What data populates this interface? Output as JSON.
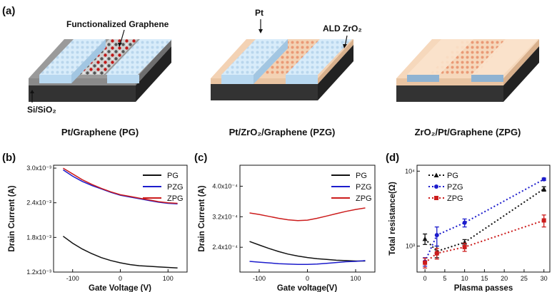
{
  "figure": {
    "panels": {
      "a": "(a)",
      "b": "(b)",
      "c": "(c)",
      "d": "(d)"
    },
    "device_labels": {
      "functionalized_graphene": "Functionalized Graphene",
      "pt": "Pt",
      "ald_zro2": "ALD ZrO₂",
      "substrate": "Si/SiO₂"
    },
    "captions": [
      "Pt/Graphene (PG)",
      "Pt/ZrO₂/Graphene (PZG)",
      "ZrO₂/Pt/Graphene (ZPG)"
    ],
    "colors": {
      "PG": "#111111",
      "PZG": "#1c1ccc",
      "ZPG": "#cc1c1c",
      "pt": "#cfe5f6",
      "zro2": "#f8dcc0",
      "substrate": "#3a3a3a"
    }
  },
  "chart_data": [
    {
      "type": "line",
      "panel": "(b)",
      "xlabel": "Gate Voltage (V)",
      "ylabel": "Drain Current (A)",
      "xlim": [
        -140,
        140
      ],
      "ylim": [
        0.0012,
        0.00305
      ],
      "xticks": [
        {
          "v": -100,
          "label": "-100"
        },
        {
          "v": 0,
          "label": "0"
        },
        {
          "v": 100,
          "label": "100"
        }
      ],
      "yticks": [
        {
          "v": 0.0012,
          "label": "1.2x10⁻³"
        },
        {
          "v": 0.0018,
          "label": "1.8x10⁻³"
        },
        {
          "v": 0.0024,
          "label": "2.4x10⁻³"
        },
        {
          "v": 0.003,
          "label": "3.0x10⁻³"
        }
      ],
      "x": [
        -120,
        -100,
        -80,
        -60,
        -40,
        -20,
        0,
        20,
        40,
        60,
        80,
        100,
        120
      ],
      "series": [
        {
          "name": "PG",
          "values": [
            0.00182,
            0.0017,
            0.0016,
            0.00152,
            0.00145,
            0.0014,
            0.00136,
            0.00133,
            0.00131,
            0.0013,
            0.00129,
            0.00128,
            0.00127
          ]
        },
        {
          "name": "PZG",
          "values": [
            0.00297,
            0.00286,
            0.00277,
            0.0027,
            0.00264,
            0.00258,
            0.00253,
            0.0025,
            0.00247,
            0.00244,
            0.00241,
            0.00239,
            0.00238
          ]
        },
        {
          "name": "ZPG",
          "values": [
            0.003,
            0.0029,
            0.0028,
            0.00272,
            0.00265,
            0.00259,
            0.00254,
            0.00251,
            0.00248,
            0.00245,
            0.00242,
            0.0024,
            0.00239
          ]
        }
      ],
      "legend": "top-right"
    },
    {
      "type": "line",
      "panel": "(c)",
      "xlabel": "Gate voltage(V)",
      "ylabel": "Drain Current (A)",
      "xlim": [
        -140,
        140
      ],
      "ylim": [
        0.000175,
        0.000455
      ],
      "xticks": [
        {
          "v": -100,
          "label": "-100"
        },
        {
          "v": 0,
          "label": "0"
        },
        {
          "v": 100,
          "label": "100"
        }
      ],
      "yticks": [
        {
          "v": 0.00024,
          "label": "2.4x10⁻⁴"
        },
        {
          "v": 0.00032,
          "label": "3.2x10⁻⁴"
        },
        {
          "v": 0.0004,
          "label": "4.0x10⁻⁴"
        }
      ],
      "x": [
        -120,
        -100,
        -80,
        -60,
        -40,
        -20,
        0,
        20,
        40,
        60,
        80,
        100,
        120
      ],
      "series": [
        {
          "name": "PG",
          "values": [
            0.000255,
            0.000246,
            0.000237,
            0.000229,
            0.000222,
            0.000217,
            0.000213,
            0.00021,
            0.000208,
            0.000206,
            0.000205,
            0.000204,
            0.000204
          ]
        },
        {
          "name": "PZG",
          "values": [
            0.000203,
            0.000201,
            0.000199,
            0.000197,
            0.000196,
            0.000195,
            0.000195,
            0.000196,
            0.000198,
            0.0002,
            0.000202,
            0.000203,
            0.000205
          ]
        },
        {
          "name": "ZPG",
          "values": [
            0.00033,
            0.000326,
            0.000321,
            0.000316,
            0.000312,
            0.00031,
            0.000311,
            0.000316,
            0.000322,
            0.000328,
            0.000334,
            0.000339,
            0.000343
          ]
        }
      ],
      "legend": "top-right"
    },
    {
      "type": "scatter",
      "panel": "(d)",
      "xlabel": "Plasma passes",
      "ylabel": "Total resistance(Ω)",
      "yscale": "log",
      "xlim": [
        -2,
        31.5
      ],
      "ylim": [
        450,
        12000
      ],
      "xticks": [
        {
          "v": 0,
          "label": "0"
        },
        {
          "v": 5,
          "label": "5"
        },
        {
          "v": 10,
          "label": "10"
        },
        {
          "v": 15,
          "label": "15"
        },
        {
          "v": 20,
          "label": "20"
        },
        {
          "v": 25,
          "label": "25"
        },
        {
          "v": 30,
          "label": "30"
        }
      ],
      "yticks": [
        {
          "v": 1000,
          "label": "10³"
        },
        {
          "v": 10000,
          "label": "10⁴"
        }
      ],
      "x": [
        0,
        3,
        10,
        30
      ],
      "series": [
        {
          "name": "PG",
          "marker": "triangle",
          "values": [
            1250,
            850,
            1120,
            5800
          ],
          "errors": [
            200,
            150,
            100,
            400
          ]
        },
        {
          "name": "PZG",
          "marker": "circle",
          "values": [
            620,
            1400,
            2050,
            7800
          ],
          "errors": [
            80,
            400,
            250,
            300
          ]
        },
        {
          "name": "ZPG",
          "marker": "square",
          "values": [
            600,
            800,
            970,
            2200
          ],
          "errors": [
            90,
            130,
            120,
            400
          ]
        }
      ],
      "legend": "top-left"
    }
  ]
}
